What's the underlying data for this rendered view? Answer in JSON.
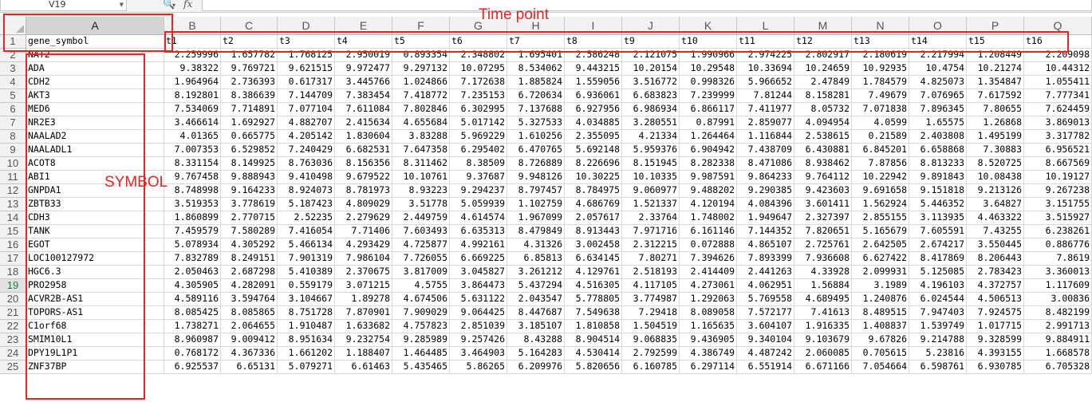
{
  "formula_bar": {
    "cell_reference": "V19",
    "fx_label": "fx",
    "formula_value": ""
  },
  "columns": [
    "A",
    "B",
    "C",
    "D",
    "E",
    "F",
    "G",
    "H",
    "I",
    "J",
    "K",
    "L",
    "M",
    "N",
    "O",
    "P",
    "Q"
  ],
  "selected_column": "A",
  "active_row": "19",
  "header_row": {
    "row_number": "1",
    "cells": [
      "gene_symbol",
      "t1",
      "t2",
      "t3",
      "t4",
      "t5",
      "t6",
      "t7",
      "t8",
      "t9",
      "t10",
      "t11",
      "t12",
      "t13",
      "t14",
      "t15",
      "t16"
    ]
  },
  "rows": [
    {
      "n": "2",
      "cells": [
        "NAT2",
        "2.259996",
        "1.657782",
        "1.768125",
        "2.950019",
        "0.893354",
        "2.348802",
        "1.695401",
        "2.586248",
        "2.121075",
        "1.990966",
        "2.974225",
        "2.802917",
        "2.180619",
        "2.217994",
        "1.208449",
        "2.209098"
      ]
    },
    {
      "n": "3",
      "cells": [
        "ADA",
        "9.38322",
        "9.769721",
        "9.621515",
        "9.972477",
        "9.297132",
        "10.07295",
        "8.534062",
        "9.443215",
        "10.20154",
        "10.29548",
        "10.33694",
        "10.24659",
        "10.92935",
        "10.4754",
        "10.21274",
        "10.44312"
      ]
    },
    {
      "n": "4",
      "cells": [
        "CDH2",
        "1.964964",
        "2.736393",
        "0.617317",
        "3.445766",
        "1.024866",
        "7.172638",
        "1.885824",
        "1.559056",
        "3.516772",
        "0.998326",
        "5.966652",
        "2.47849",
        "1.784579",
        "4.825073",
        "1.354847",
        "1.055411"
      ]
    },
    {
      "n": "5",
      "cells": [
        "AKT3",
        "8.192801",
        "8.386639",
        "7.144709",
        "7.383454",
        "7.418772",
        "7.235153",
        "6.720634",
        "6.936061",
        "6.683823",
        "7.239999",
        "7.81244",
        "8.158281",
        "7.49679",
        "7.076965",
        "7.617592",
        "7.777341"
      ]
    },
    {
      "n": "6",
      "cells": [
        "MED6",
        "7.534069",
        "7.714891",
        "7.077104",
        "7.611084",
        "7.802846",
        "6.302995",
        "7.137688",
        "6.927956",
        "6.986934",
        "6.866117",
        "7.411977",
        "8.05732",
        "7.071838",
        "7.896345",
        "7.80655",
        "7.624459"
      ]
    },
    {
      "n": "7",
      "cells": [
        "NR2E3",
        "3.466614",
        "1.692927",
        "4.882707",
        "2.415634",
        "4.655684",
        "5.017142",
        "5.327533",
        "4.034885",
        "3.280551",
        "0.87991",
        "2.859077",
        "4.094954",
        "4.0599",
        "1.65575",
        "1.26868",
        "3.869013"
      ]
    },
    {
      "n": "8",
      "cells": [
        "NAALAD2",
        "4.01365",
        "0.665775",
        "4.205142",
        "1.830604",
        "3.83288",
        "5.969229",
        "1.610256",
        "2.355095",
        "4.21334",
        "1.264464",
        "1.116844",
        "2.538615",
        "0.21589",
        "2.403808",
        "1.495199",
        "3.317782"
      ]
    },
    {
      "n": "9",
      "cells": [
        "NAALADL1",
        "7.007353",
        "6.529852",
        "7.240429",
        "6.682531",
        "7.647358",
        "6.295402",
        "6.470765",
        "5.692148",
        "5.959376",
        "6.904942",
        "7.438709",
        "6.430881",
        "6.845201",
        "6.658868",
        "7.30883",
        "6.956521"
      ]
    },
    {
      "n": "10",
      "cells": [
        "ACOT8",
        "8.331154",
        "8.149925",
        "8.763036",
        "8.156356",
        "8.311462",
        "8.38509",
        "8.726889",
        "8.226696",
        "8.151945",
        "8.282338",
        "8.471086",
        "8.938462",
        "7.87856",
        "8.813233",
        "8.520725",
        "8.667569"
      ]
    },
    {
      "n": "11",
      "cells": [
        "ABI1",
        "9.767458",
        "9.888943",
        "9.410498",
        "9.679522",
        "10.10761",
        "9.37687",
        "9.948126",
        "10.30225",
        "10.10335",
        "9.987591",
        "9.864233",
        "9.764112",
        "10.22942",
        "9.891843",
        "10.08438",
        "10.19127"
      ]
    },
    {
      "n": "12",
      "cells": [
        "GNPDA1",
        "8.748998",
        "9.164233",
        "8.924073",
        "8.781973",
        "8.93223",
        "9.294237",
        "8.797457",
        "8.784975",
        "9.060977",
        "9.488202",
        "9.290385",
        "9.423603",
        "9.691658",
        "9.151818",
        "9.213126",
        "9.267238"
      ]
    },
    {
      "n": "13",
      "cells": [
        "ZBTB33",
        "3.519353",
        "3.778619",
        "5.187423",
        "4.809029",
        "3.51778",
        "5.059939",
        "1.102759",
        "4.686769",
        "1.521337",
        "4.120194",
        "4.084396",
        "3.601411",
        "1.562924",
        "5.446352",
        "3.64827",
        "3.151755"
      ]
    },
    {
      "n": "14",
      "cells": [
        "CDH3",
        "1.860899",
        "2.770715",
        "2.52235",
        "2.279629",
        "2.449759",
        "4.614574",
        "1.967099",
        "2.057617",
        "2.33764",
        "1.748002",
        "1.949647",
        "2.327397",
        "2.855155",
        "3.113935",
        "4.463322",
        "3.515927"
      ]
    },
    {
      "n": "15",
      "cells": [
        "TANK",
        "7.459579",
        "7.580289",
        "7.416054",
        "7.71406",
        "7.603493",
        "6.635313",
        "8.479849",
        "8.913443",
        "7.971716",
        "6.161146",
        "7.144352",
        "7.820651",
        "5.165679",
        "7.605591",
        "7.43255",
        "6.238261"
      ]
    },
    {
      "n": "16",
      "cells": [
        "EGOT",
        "5.078934",
        "4.305292",
        "5.466134",
        "4.293429",
        "4.725877",
        "4.992161",
        "4.31326",
        "3.002458",
        "2.312215",
        "0.072888",
        "4.865107",
        "2.725761",
        "2.642505",
        "2.674217",
        "3.550445",
        "0.886776"
      ]
    },
    {
      "n": "17",
      "cells": [
        "LOC100127972",
        "7.832789",
        "8.249151",
        "7.901319",
        "7.986104",
        "7.726055",
        "6.669225",
        "6.85813",
        "6.634145",
        "7.80271",
        "7.394626",
        "7.893399",
        "7.936608",
        "6.627422",
        "8.417869",
        "8.206443",
        "7.8619"
      ]
    },
    {
      "n": "18",
      "cells": [
        "HGC6.3",
        "2.050463",
        "2.687298",
        "5.410389",
        "2.370675",
        "3.817009",
        "3.045827",
        "3.261212",
        "4.129761",
        "2.518193",
        "2.414409",
        "2.441263",
        "4.33928",
        "2.099931",
        "5.125085",
        "2.783423",
        "3.360013"
      ]
    },
    {
      "n": "19",
      "cells": [
        "PRO2958",
        "4.305905",
        "4.282091",
        "0.559179",
        "3.071215",
        "4.5755",
        "3.864473",
        "5.437294",
        "4.516305",
        "4.117105",
        "4.273061",
        "4.062951",
        "1.56884",
        "3.1989",
        "4.196103",
        "4.372757",
        "1.117609"
      ]
    },
    {
      "n": "20",
      "cells": [
        "ACVR2B-AS1",
        "4.589116",
        "3.594764",
        "3.104667",
        "1.89278",
        "4.674506",
        "5.631122",
        "2.043547",
        "5.778805",
        "3.774987",
        "1.292063",
        "5.769558",
        "4.689495",
        "1.240876",
        "6.024544",
        "4.506513",
        "3.00836"
      ]
    },
    {
      "n": "21",
      "cells": [
        "TOPORS-AS1",
        "8.085425",
        "8.085865",
        "8.751728",
        "7.870901",
        "7.909029",
        "9.064425",
        "8.447687",
        "7.549638",
        "7.29418",
        "8.089058",
        "7.572177",
        "7.41613",
        "8.489515",
        "7.947403",
        "7.924575",
        "8.482199"
      ]
    },
    {
      "n": "22",
      "cells": [
        "C1orf68",
        "1.738271",
        "2.064655",
        "1.910487",
        "1.633682",
        "4.757823",
        "2.851039",
        "3.185107",
        "1.810858",
        "1.504519",
        "1.165635",
        "3.604107",
        "1.916335",
        "1.408837",
        "1.539749",
        "1.017715",
        "2.991713"
      ]
    },
    {
      "n": "23",
      "cells": [
        "SMIM10L1",
        "8.960987",
        "9.009412",
        "8.951634",
        "9.232754",
        "9.285989",
        "9.257426",
        "8.43288",
        "8.904514",
        "9.068835",
        "9.436905",
        "9.340104",
        "9.103679",
        "9.67826",
        "9.214788",
        "9.328599",
        "9.884911"
      ]
    },
    {
      "n": "24",
      "cells": [
        "DPY19L1P1",
        "0.768172",
        "4.367336",
        "1.661202",
        "1.188407",
        "1.464485",
        "3.464903",
        "5.164283",
        "4.530414",
        "2.792599",
        "4.386749",
        "4.487242",
        "2.060085",
        "0.705615",
        "5.23816",
        "4.393155",
        "1.668578"
      ]
    },
    {
      "n": "25",
      "cells": [
        "ZNF37BP",
        "6.925537",
        "6.65131",
        "5.079271",
        "6.61463",
        "5.435465",
        "5.86265",
        "6.209976",
        "5.820656",
        "6.160785",
        "6.297114",
        "6.551914",
        "6.671166",
        "7.054664",
        "6.598761",
        "6.930785",
        "6.705328"
      ]
    }
  ],
  "annotations": {
    "time_point_label": "Time point",
    "symbol_label": "SYMBOL"
  }
}
